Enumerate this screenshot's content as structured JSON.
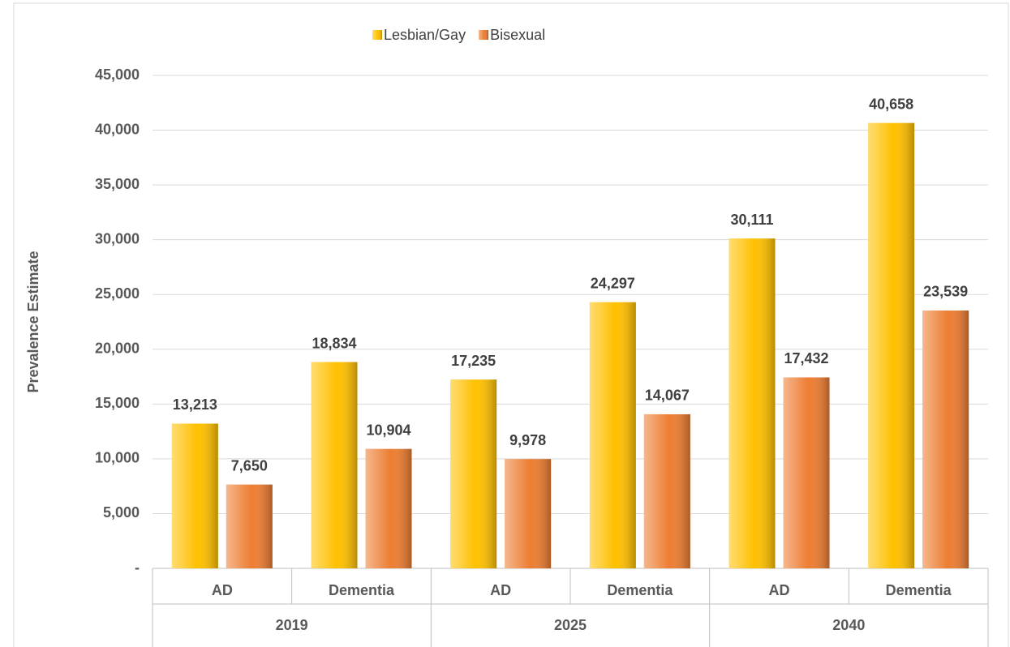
{
  "chart_data": {
    "type": "bar",
    "y_label": "Prevalence Estimate",
    "categories": [
      "AD",
      "Dementia",
      "AD",
      "Dementia",
      "AD",
      "Dementia"
    ],
    "groups": [
      "2019",
      "2025",
      "2040"
    ],
    "series": [
      {
        "name": "Lesbian/Gay",
        "color": "#ffc000",
        "values": [
          13213,
          18834,
          17235,
          24297,
          30111,
          40658
        ],
        "value_labels": [
          "13,213",
          "18,834",
          "17,235",
          "24,297",
          "30,111",
          "40,658"
        ]
      },
      {
        "name": "Bisexual",
        "color": "#ed7d31",
        "values": [
          7650,
          10904,
          9978,
          14067,
          17432,
          23539
        ],
        "value_labels": [
          "7,650",
          "10,904",
          "9,978",
          "14,067",
          "17,432",
          "23,539"
        ]
      }
    ],
    "ylim": [
      0,
      45000
    ],
    "yticks": [
      {
        "value": 0,
        "label": "-"
      },
      {
        "value": 5000,
        "label": "5,000"
      },
      {
        "value": 10000,
        "label": "10,000"
      },
      {
        "value": 15000,
        "label": "15,000"
      },
      {
        "value": 20000,
        "label": "20,000"
      },
      {
        "value": 25000,
        "label": "25,000"
      },
      {
        "value": 30000,
        "label": "30,000"
      },
      {
        "value": 35000,
        "label": "35,000"
      },
      {
        "value": 40000,
        "label": "40,000"
      },
      {
        "value": 45000,
        "label": "45,000"
      }
    ],
    "grid": true,
    "legend": "top"
  }
}
